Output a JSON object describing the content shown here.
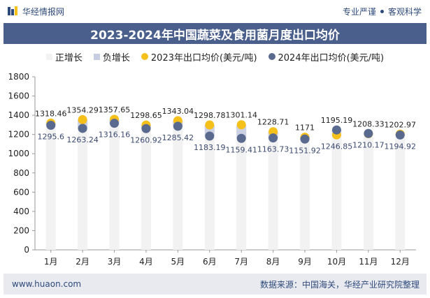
{
  "header": {
    "brand": "华经情报网",
    "tagline_left": "专业严谨",
    "tagline_right": "客观科学"
  },
  "colors": {
    "title_bg": "#4a5f8c",
    "up_bar": "#f2f2f2",
    "down_bar": "#c7cde0",
    "series_2023": "#f5c01a",
    "series_2024": "#5a6a8e"
  },
  "chart_data": {
    "type": "scatter",
    "title": "2023-2024年中国蔬菜及食用菌月度出口均价",
    "categories": [
      "1月",
      "2月",
      "3月",
      "4月",
      "5月",
      "6月",
      "7月",
      "8月",
      "9月",
      "10月",
      "11月",
      "12月"
    ],
    "legend": [
      "正增长",
      "负增长",
      "2023年出口均价(美元/吨)",
      "2024年出口均价(美元/吨)"
    ],
    "series": [
      {
        "name": "2023年出口均价(美元/吨)",
        "values": [
          1318.46,
          1354.29,
          1357.65,
          1298.65,
          1343.04,
          1298.78,
          1301.14,
          1228.71,
          1171,
          1195.19,
          1208.33,
          1202.97
        ],
        "labels": [
          "1318.46",
          "1354.29",
          "1357.65",
          "1298.65",
          "1343.04",
          "1298.78",
          "1301.14",
          "1228.71",
          "1171",
          "1195.19",
          "1208.33",
          "1202.97"
        ]
      },
      {
        "name": "2024年出口均价(美元/吨)",
        "values": [
          1295.6,
          1263.24,
          1316.16,
          1260.92,
          1285.42,
          1183.19,
          1159.41,
          1163.73,
          1151.92,
          1246.85,
          1210.17,
          1194.92
        ],
        "labels": [
          "1295.6",
          "1263.24",
          "1316.16",
          "1260.92",
          "1285.42",
          "1183.19",
          "1159.41",
          "1163.73",
          "1151.92",
          "1246.85",
          "1210.17",
          "1194.92"
        ]
      }
    ],
    "ylim": [
      0,
      1800
    ],
    "yticks": [
      0,
      200,
      400,
      600,
      800,
      1000,
      1200,
      1400,
      1600,
      1800
    ],
    "legend_position": "top-center"
  },
  "footer": {
    "url": "www.huaon.com",
    "source": "数据来源：中国海关，华经产业研究院整理"
  }
}
